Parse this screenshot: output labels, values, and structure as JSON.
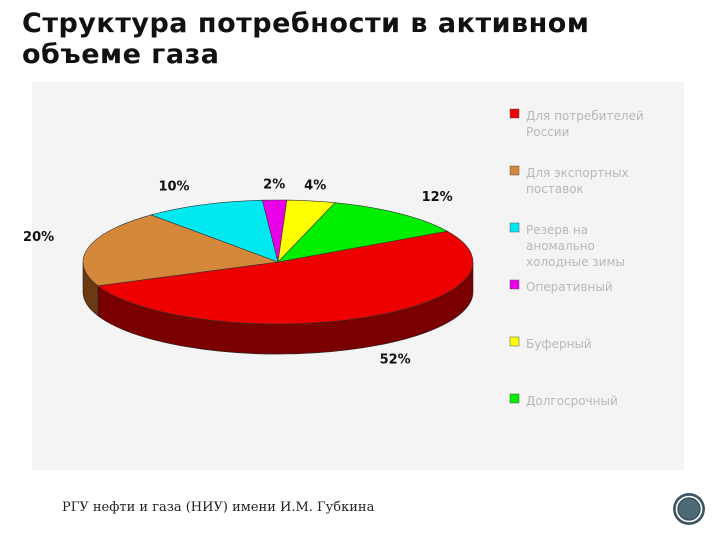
{
  "page": {
    "title": "Структура потребности в активном объеме газа",
    "footer": "РГУ нефти и газа (НИУ) имени И.М. Губкина"
  },
  "chart_data": {
    "type": "pie",
    "title": "Структура потребности в активном объеме газа",
    "slices": [
      {
        "name": "Для потребителей России",
        "value": 52,
        "label": "52%",
        "color": "#ee0000",
        "side_color": "#7a0000"
      },
      {
        "name": "Для экспортных поставок",
        "value": 20,
        "label": "20%",
        "color": "#d4883a",
        "side_color": "#6b3a12"
      },
      {
        "name": "Резерв на аномально холодные зимы",
        "value": 10,
        "label": "10%",
        "color": "#00e8f0",
        "side_color": "#007a80"
      },
      {
        "name": "Оперативный",
        "value": 2,
        "label": "2%",
        "color": "#e800e8",
        "side_color": "#7a007a"
      },
      {
        "name": "Буферный",
        "value": 4,
        "label": "4%",
        "color": "#ffff00",
        "side_color": "#808000"
      },
      {
        "name": "Долгосрочный",
        "value": 12,
        "label": "12%",
        "color": "#00ee00",
        "side_color": "#007a00"
      }
    ],
    "legend_position": "right"
  }
}
